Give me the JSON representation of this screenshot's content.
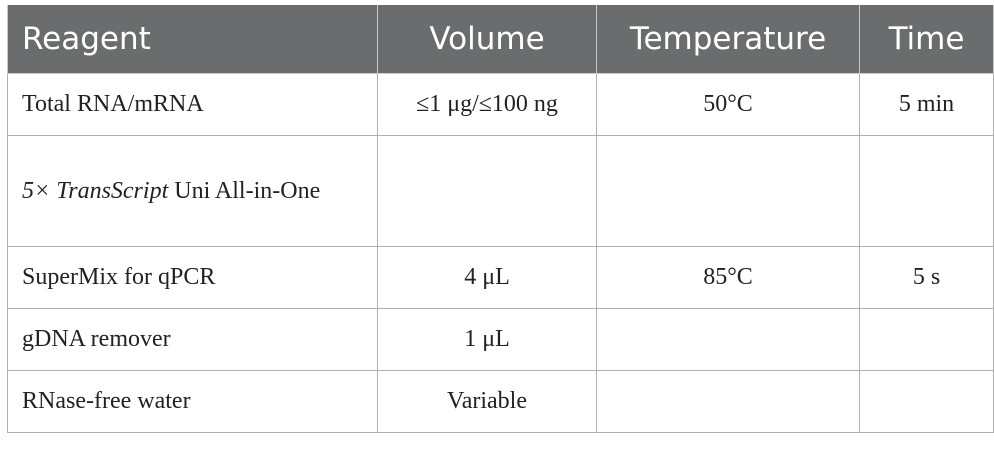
{
  "table": {
    "header": [
      "Reagent",
      "Volume",
      "Temperature",
      "Time"
    ],
    "rows": [
      [
        "Total RNA/mRNA",
        "≤1 μg/≤100 ng",
        "50°C",
        "5 min"
      ],
      [
        [
          "5×",
          "TransScript",
          "Uni All-in-One"
        ],
        null,
        null,
        null
      ],
      [
        "SuperMix for qPCR",
        "4 μL",
        "85°C",
        "5 s"
      ],
      [
        "gDNA remover",
        "1 μL",
        null,
        null
      ],
      [
        "RNase-free water",
        "Variable",
        null,
        null
      ]
    ]
  }
}
